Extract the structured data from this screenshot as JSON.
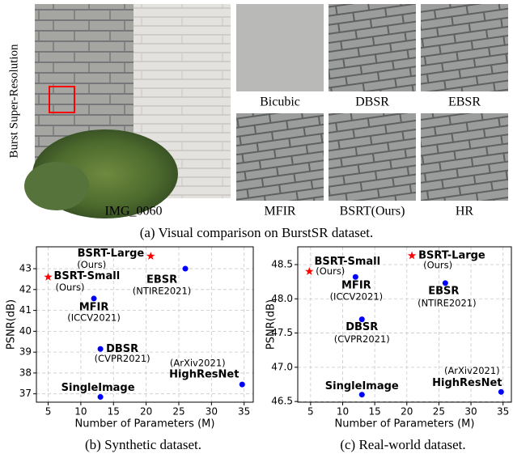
{
  "figure": {
    "side_label": "Burst Super-Resolution",
    "main_image_label": "IMG_0060",
    "crop_labels": [
      "Bicubic",
      "DBSR",
      "EBSR",
      "MFIR",
      "BSRT(Ours)",
      "HR"
    ],
    "caption_a": "(a) Visual comparison on BurstSR dataset."
  },
  "chart_data": [
    {
      "type": "scatter",
      "caption": "(b) Synthetic dataset.",
      "x_label": "Number of Parameters (M)",
      "y_label": "PSNR(dB)",
      "xlim": [
        3.2,
        36.4
      ],
      "ylim": [
        36.6,
        44.05
      ],
      "xticks": [
        5,
        10,
        15,
        20,
        25,
        30,
        35
      ],
      "yticks": [
        37,
        38,
        39,
        40,
        41,
        42,
        43
      ],
      "grid": true,
      "series": [
        {
          "name": "BSRT-Large",
          "note": "(Ours)",
          "marker": "star",
          "color": "#ff0000",
          "x": [
            20.7
          ],
          "values": [
            43.6
          ]
        },
        {
          "name": "BSRT-Small",
          "note": "(Ours)",
          "marker": "star",
          "color": "#ff0000",
          "x": [
            5
          ],
          "values": [
            42.6
          ]
        },
        {
          "name": "EBSR",
          "note": "(NTIRE2021)",
          "marker": "dot",
          "color": "#0000ff",
          "x": [
            26
          ],
          "values": [
            43.0
          ]
        },
        {
          "name": "MFIR",
          "note": "(ICCV2021)",
          "marker": "dot",
          "color": "#0000ff",
          "x": [
            12
          ],
          "values": [
            41.57
          ]
        },
        {
          "name": "DBSR",
          "note": "(CVPR2021)",
          "marker": "dot",
          "color": "#0000ff",
          "x": [
            13
          ],
          "values": [
            39.15
          ]
        },
        {
          "name": "SingleImage",
          "marker": "dot",
          "color": "#0000ff",
          "x": [
            13
          ],
          "values": [
            36.85
          ]
        },
        {
          "name": "HighResNet",
          "note": "(ArXiv2021)",
          "marker": "dot",
          "color": "#0000ff",
          "x": [
            34.7
          ],
          "values": [
            37.45
          ]
        }
      ]
    },
    {
      "type": "scatter",
      "caption": "(c) Real-world dataset.",
      "x_label": "Number of Parameters (M)",
      "y_label": "PSNR(dB)",
      "xlim": [
        3.0,
        36.3
      ],
      "ylim": [
        46.49,
        48.76
      ],
      "xticks": [
        5,
        10,
        15,
        20,
        25,
        30,
        35
      ],
      "yticks": [
        46.5,
        {
          "value": 47.0,
          "label": "47.0"
        },
        47.5,
        {
          "value": 48.0,
          "label": "48.0"
        },
        48.5
      ],
      "grid": true,
      "series": [
        {
          "name": "BSRT-Small",
          "note": "(Ours)",
          "marker": "star",
          "color": "#ff0000",
          "x": [
            4.8
          ],
          "values": [
            48.4
          ]
        },
        {
          "name": "BSRT-Large",
          "note": "(Ours)",
          "marker": "star",
          "color": "#ff0000",
          "x": [
            20.8
          ],
          "values": [
            48.63
          ]
        },
        {
          "name": "MFIR",
          "note": "(ICCV2021)",
          "marker": "dot",
          "color": "#0000ff",
          "x": [
            12
          ],
          "values": [
            48.32
          ]
        },
        {
          "name": "EBSR",
          "note": "(NTIRE2021)",
          "marker": "dot",
          "color": "#0000ff",
          "x": [
            26
          ],
          "values": [
            48.23
          ]
        },
        {
          "name": "DBSR",
          "note": "(CVPR2021)",
          "marker": "dot",
          "color": "#0000ff",
          "x": [
            13
          ],
          "values": [
            47.7
          ]
        },
        {
          "name": "SingleImage",
          "marker": "dot",
          "color": "#0000ff",
          "x": [
            13
          ],
          "values": [
            46.6
          ]
        },
        {
          "name": "HighResNet",
          "note": "(ArXiv2021)",
          "marker": "dot",
          "color": "#0000ff",
          "x": [
            34.7
          ],
          "values": [
            46.64
          ]
        }
      ]
    }
  ]
}
